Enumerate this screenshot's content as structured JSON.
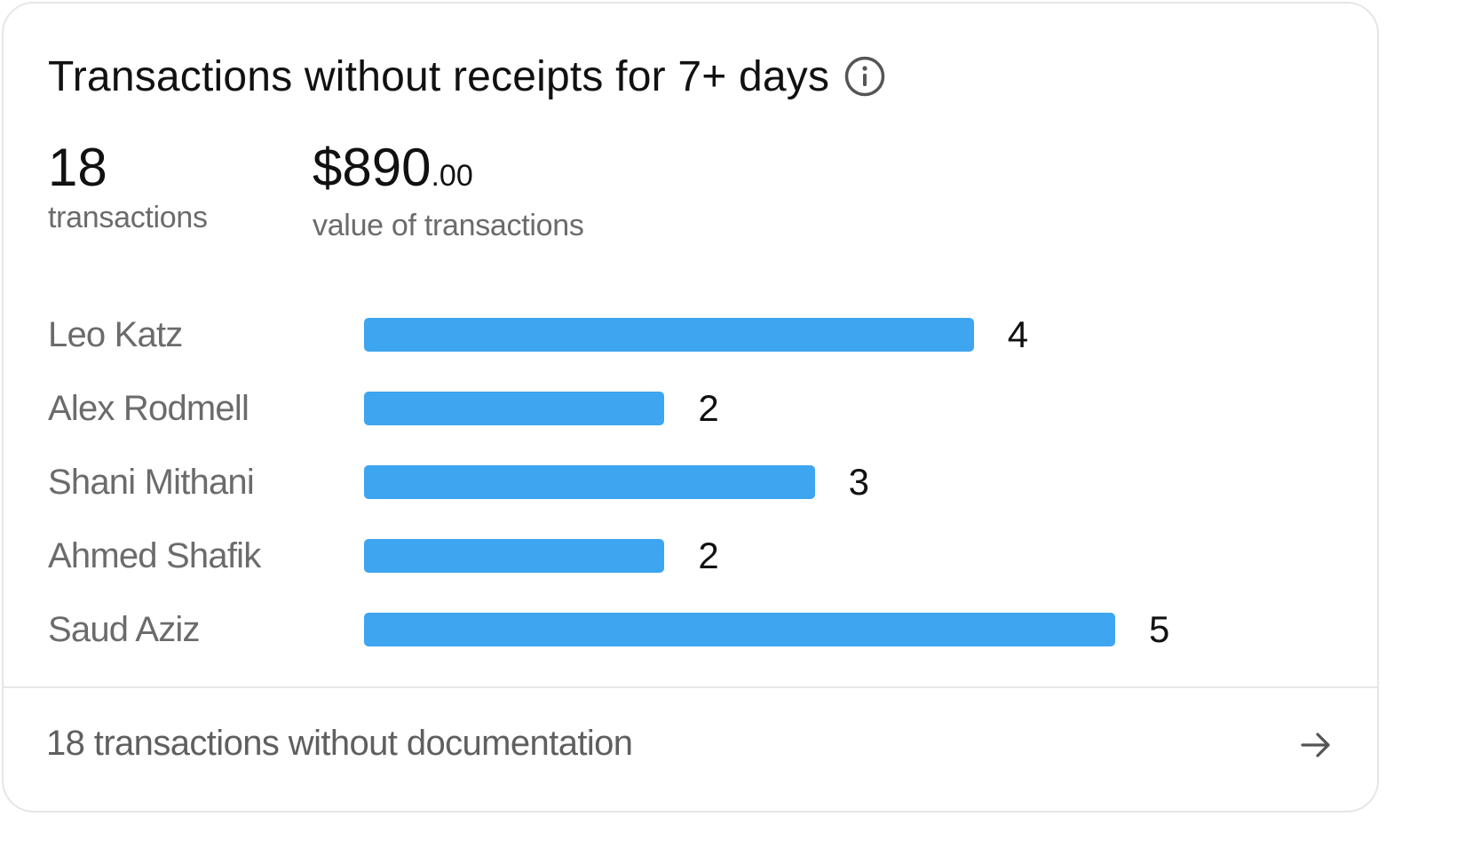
{
  "card": {
    "title": "Transactions without receipts for 7+ days",
    "info_icon": "info-circle-icon"
  },
  "stats": {
    "count": {
      "value": "18",
      "label": "transactions"
    },
    "amount": {
      "value": "$890",
      "cents": ".00",
      "label": "value of transactions"
    }
  },
  "chart_data": {
    "type": "bar",
    "orientation": "horizontal",
    "categories": [
      "Leo Katz",
      "Alex Rodmell",
      "Shani Mithani",
      "Ahmed Shafik",
      "Saud Aziz"
    ],
    "values": [
      4,
      2,
      3,
      2,
      5
    ],
    "bar_color": "#3ea5f0",
    "title": "",
    "xlabel": "",
    "ylabel": ""
  },
  "footer": {
    "link_text": "18 transactions without documentation",
    "arrow_icon": "arrow-right-icon"
  },
  "colors": {
    "bar": "#3ea5f0",
    "text_primary": "#111111",
    "text_secondary": "#6b6b6b",
    "border": "#e6e6e6"
  }
}
